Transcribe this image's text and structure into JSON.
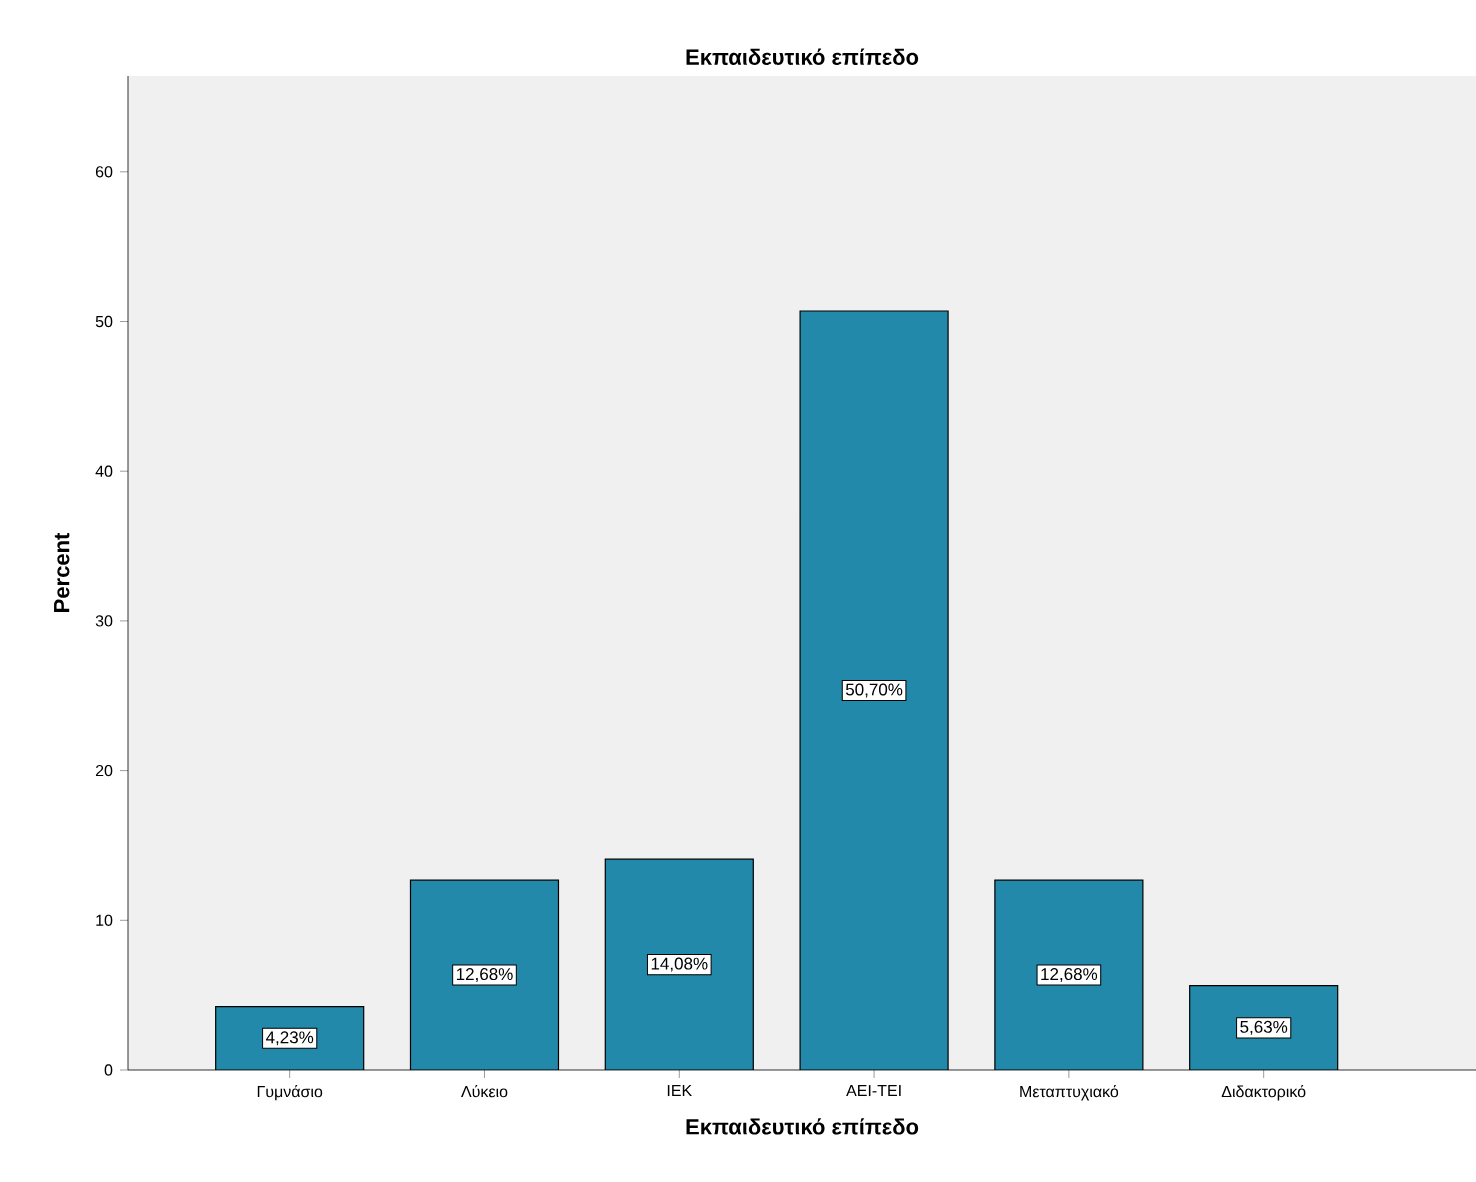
{
  "chart_data": {
    "type": "bar",
    "title": "Εκπαιδευτικό επίπεδο",
    "xlabel": "Εκπαιδευτικό επίπεδο",
    "ylabel": "Percent",
    "categories": [
      "Γυμνάσιο",
      "Λύκειο",
      "ΙΕΚ",
      "ΑΕΙ-ΤΕΙ",
      "Μεταπτυχιακό",
      "Διδακτορικό"
    ],
    "values": [
      4.23,
      12.68,
      14.08,
      50.7,
      12.68,
      5.63
    ],
    "value_labels": [
      "4,23%",
      "12,68%",
      "14,08%",
      "50,70%",
      "12,68%",
      "5,63%"
    ],
    "color": "#2389aa",
    "ylim": [
      0,
      66.4
    ],
    "yticks": [
      0,
      10,
      20,
      30,
      40,
      50,
      60
    ],
    "grid": false
  }
}
